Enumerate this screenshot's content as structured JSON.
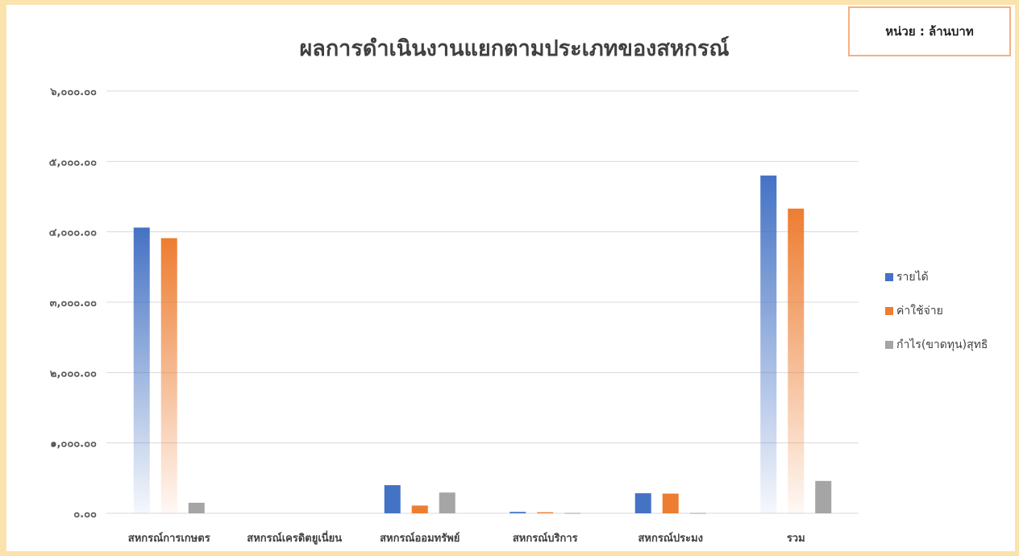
{
  "unit_label": "หน่วย : ล้านบาท",
  "chart_data": {
    "type": "bar",
    "title": "ผลการดำเนินงานแยกตามประเภทของสหกรณ์",
    "xlabel": "",
    "ylabel": "",
    "ylim": [
      0,
      6000
    ],
    "yticks": [
      0,
      1000,
      2000,
      3000,
      4000,
      5000,
      6000
    ],
    "ytick_labels": [
      "๐.๐๐",
      "๑,๐๐๐.๐๐",
      "๒,๐๐๐.๐๐",
      "๓,๐๐๐.๐๐",
      "๔,๐๐๐.๐๐",
      "๕,๐๐๐.๐๐",
      "๖,๐๐๐.๐๐"
    ],
    "categories": [
      "สหกรณ์การเกษตร",
      "สหกรณ์เครดิตยูเนี่ยน",
      "สหกรณ์ออมทรัพย์",
      "สหกรณ์บริการ",
      "สหกรณ์ประมง",
      "รวม"
    ],
    "series": [
      {
        "name": "รายได้",
        "color": "#4472c4",
        "values": [
          4060,
          0,
          400,
          20,
          285,
          4800
        ]
      },
      {
        "name": "ค่าใช้จ่าย",
        "color": "#ed7d31",
        "values": [
          3910,
          0,
          110,
          15,
          280,
          4330
        ]
      },
      {
        "name": "กำไร(ขาดทุน)สุทธิ",
        "color": "#a5a5a5",
        "values": [
          150,
          0,
          295,
          5,
          5,
          460
        ]
      }
    ],
    "grid": true,
    "legend_position": "right",
    "fill_style": "gradient"
  }
}
